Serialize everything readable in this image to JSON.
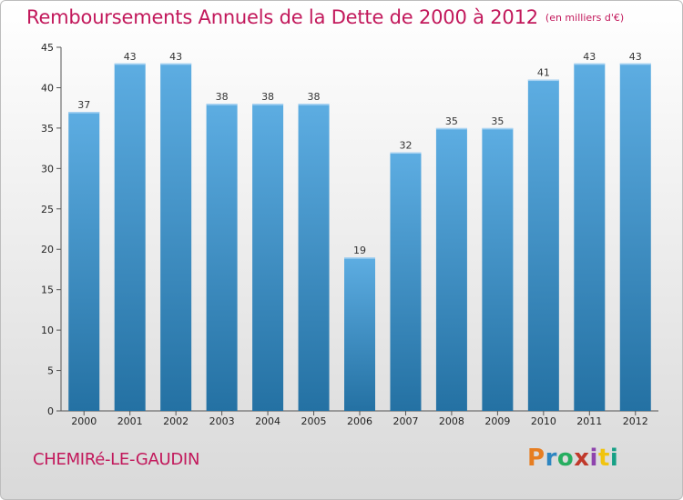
{
  "header": {
    "title": "Remboursements Annuels de la Dette de 2000 à 2012",
    "unit": "(en milliers d'€)"
  },
  "footer": {
    "commune": "CHEMIRé-LE-GAUDIN",
    "logo_text": "Proxiti"
  },
  "colors": {
    "title": "#c2185b",
    "bar_top": "#5dade2",
    "bar_bottom": "#2471a3",
    "axis": "#555555"
  },
  "chart_data": {
    "type": "bar",
    "title": "Remboursements Annuels de la Dette de 2000 à 2012",
    "xlabel": "",
    "ylabel": "",
    "categories": [
      "2000",
      "2001",
      "2002",
      "2003",
      "2004",
      "2005",
      "2006",
      "2007",
      "2008",
      "2009",
      "2010",
      "2011",
      "2012"
    ],
    "values": [
      37,
      43,
      43,
      38,
      38,
      38,
      19,
      32,
      35,
      35,
      41,
      43,
      43
    ],
    "ylim": [
      0,
      45
    ],
    "yticks": [
      0,
      5,
      10,
      15,
      20,
      25,
      30,
      35,
      40,
      45
    ],
    "grid": false,
    "legend": "none"
  }
}
